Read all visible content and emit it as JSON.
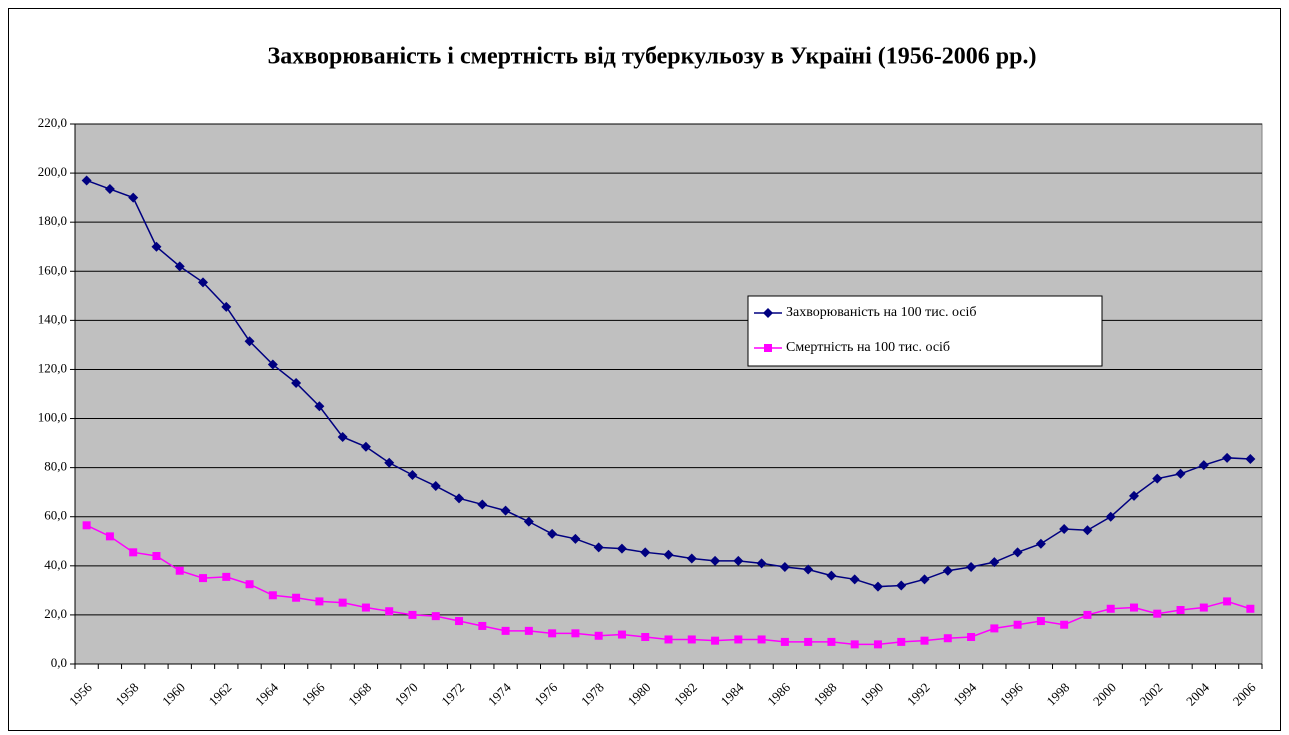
{
  "chart_data": {
    "type": "line",
    "title": "Захворюваність і смертність від туберкульозу в Україні (1956-2006 рр.)",
    "categories": [
      "1956",
      null,
      "1958",
      null,
      "1960",
      null,
      "1962",
      null,
      "1964",
      null,
      "1966",
      null,
      "1968",
      null,
      "1970",
      null,
      "1972",
      null,
      "1974",
      null,
      "1976",
      null,
      "1978",
      null,
      "1980",
      null,
      "1982",
      null,
      "1984",
      null,
      "1986",
      null,
      "1988",
      null,
      "1990",
      null,
      "1992",
      null,
      "1994",
      null,
      "1996",
      null,
      "1998",
      null,
      "2000",
      null,
      "2002",
      null,
      "2004",
      null,
      "2006"
    ],
    "series": [
      {
        "name": "Захворюваність на 100 тис. осіб",
        "color": "#000080",
        "marker": "diamond",
        "values": [
          197,
          193.5,
          190,
          170,
          162,
          155.5,
          145.5,
          131.5,
          122,
          114.5,
          105,
          92.5,
          88.5,
          82,
          77,
          72.5,
          67.5,
          65,
          62.5,
          58,
          53,
          51,
          47.5,
          47,
          45.5,
          44.5,
          43,
          42,
          42,
          41,
          39.5,
          38.5,
          36,
          34.5,
          31.5,
          32,
          34.5,
          38,
          39.5,
          41.5,
          45.5,
          49,
          55,
          54.5,
          60,
          68.5,
          75.5,
          77.5,
          81,
          84,
          83.5
        ]
      },
      {
        "name": "Смертність на 100 тис. осіб",
        "color": "#ff00ff",
        "marker": "square",
        "values": [
          56.5,
          52,
          45.5,
          44,
          38,
          35,
          35.5,
          32.5,
          28,
          27,
          25.5,
          25,
          23,
          21.5,
          20,
          19.5,
          17.5,
          15.5,
          13.5,
          13.5,
          12.5,
          12.5,
          11.5,
          12,
          11,
          10,
          10,
          9.5,
          10,
          10,
          9,
          9,
          9,
          8,
          8,
          9,
          9.5,
          10.5,
          11,
          14.5,
          16,
          17.5,
          16,
          20,
          22.5,
          23,
          20.5,
          22,
          23,
          25.5,
          22.5
        ]
      }
    ],
    "ylim": [
      0,
      220
    ],
    "yticks": [
      {
        "value": 0,
        "label": "0,0"
      },
      {
        "value": 20,
        "label": "20,0"
      },
      {
        "value": 40,
        "label": "40,0"
      },
      {
        "value": 60,
        "label": "60,0"
      },
      {
        "value": 80,
        "label": "80,0"
      },
      {
        "value": 100,
        "label": "100,0"
      },
      {
        "value": 120,
        "label": "120,0"
      },
      {
        "value": 140,
        "label": "140,0"
      },
      {
        "value": 160,
        "label": "160,0"
      },
      {
        "value": 180,
        "label": "180,0"
      },
      {
        "value": 200,
        "label": "200,0"
      },
      {
        "value": 220,
        "label": "220,0"
      }
    ],
    "grid": true,
    "plot_background": "#c0c0c0",
    "legend_position": "center-right"
  }
}
